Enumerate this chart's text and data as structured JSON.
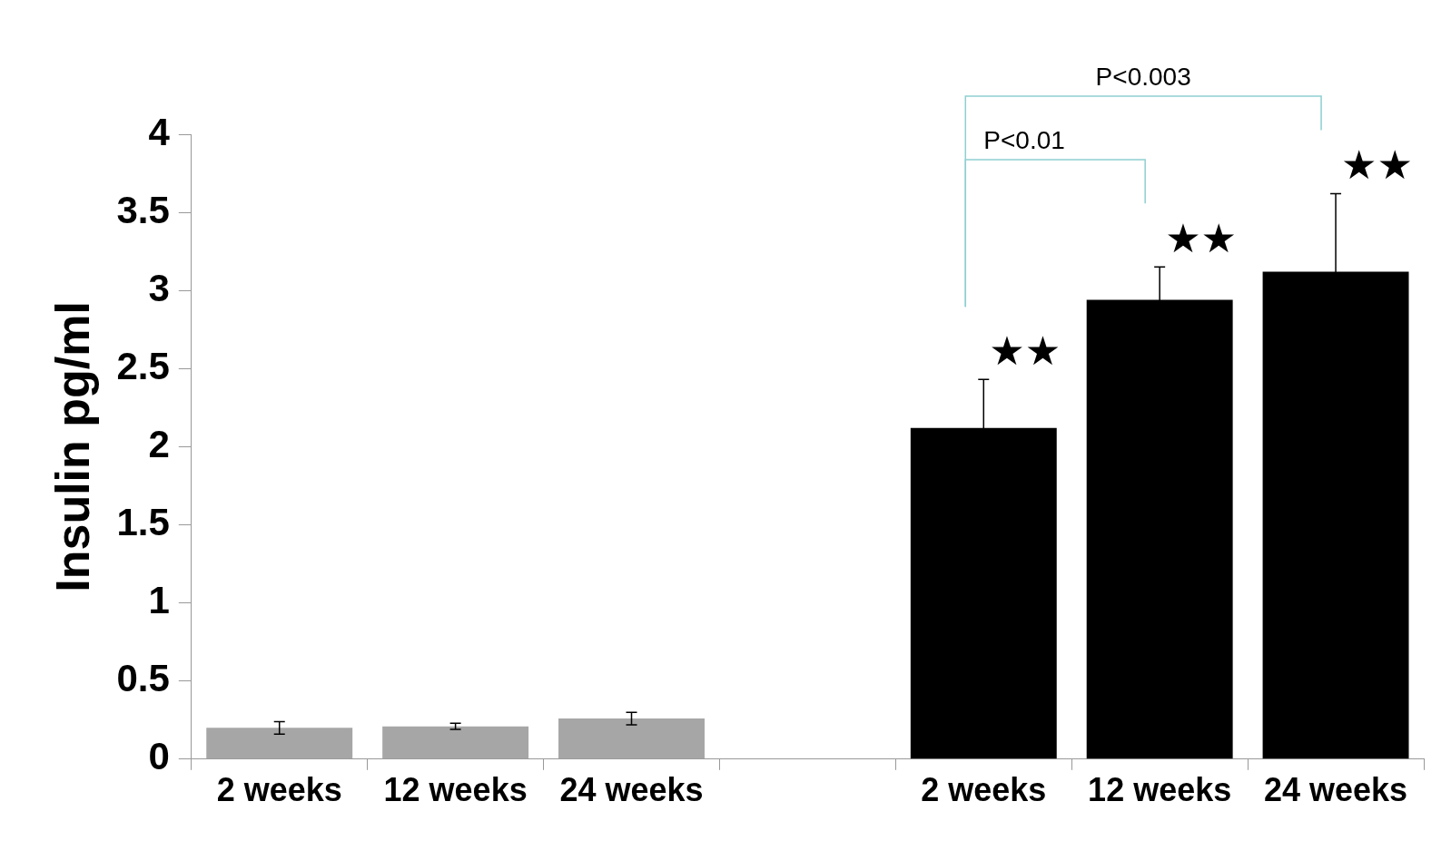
{
  "chart_data": {
    "type": "bar",
    "ylabel": "Insulin pg/ml",
    "categories": [
      "2 weeks",
      "12 weeks",
      "24 weeks",
      null,
      "2 weeks",
      "12 weeks",
      "24 weeks"
    ],
    "values": [
      0.2,
      0.21,
      0.26,
      null,
      2.12,
      2.94,
      3.12
    ],
    "colors": [
      "#a6a6a6",
      "#a6a6a6",
      "#a6a6a6",
      null,
      "#000000",
      "#000000",
      "#000000"
    ],
    "errors": [
      0.04,
      0.02,
      0.04,
      null,
      0.31,
      0.21,
      0.5
    ],
    "value_labels": [
      null,
      null,
      null,
      null,
      "★★",
      "★★",
      "★★"
    ],
    "annotations": [
      "P<0.01",
      "P<0.003"
    ],
    "ylim": [
      0,
      4
    ],
    "yticks": [
      0,
      0.5,
      1,
      1.5,
      2,
      2.5,
      3,
      3.5,
      4
    ],
    "grid": false,
    "legend": false
  }
}
